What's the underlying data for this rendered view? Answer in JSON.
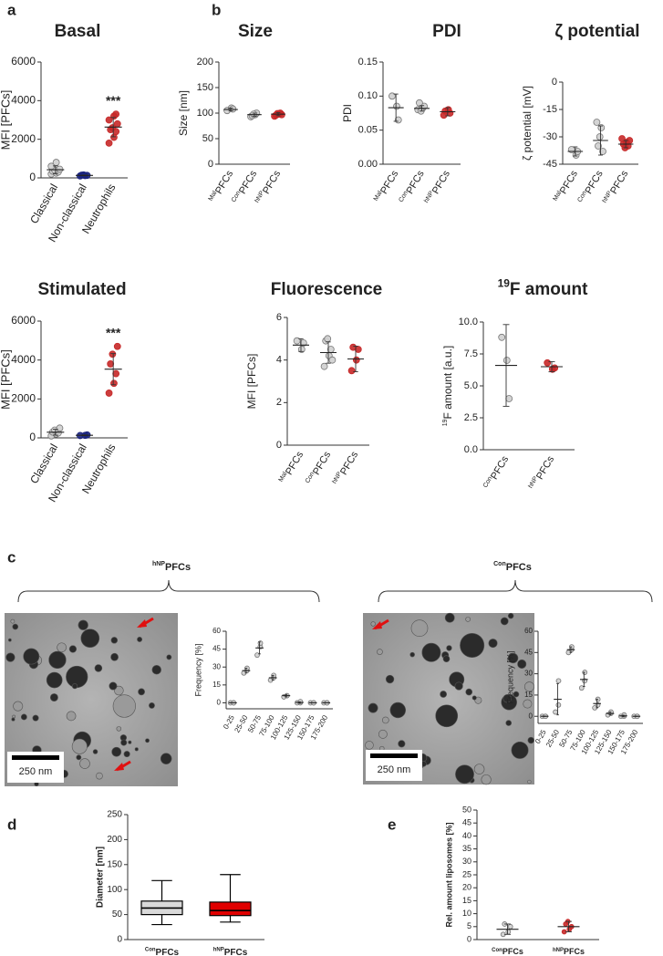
{
  "panel_letters": [
    "a",
    "b",
    "c",
    "d",
    "e"
  ],
  "chart_data": [
    {
      "type": "dot",
      "title": "Basal",
      "ylabel": "MFI [PFCs]",
      "ylim": [
        0,
        6000
      ],
      "yticks": [
        0,
        2000,
        4000,
        6000
      ],
      "categories": [
        "Classical",
        "Non-classical",
        "Neutrophils"
      ],
      "colors": [
        "#cfcfcf",
        "#1a237e",
        "#c62828"
      ],
      "points": [
        [
          200,
          250,
          300,
          350,
          400,
          450,
          600,
          800
        ],
        [
          100,
          120,
          130,
          140,
          150
        ],
        [
          1800,
          2100,
          2400,
          2500,
          2600,
          2800,
          3000,
          3200,
          3300
        ]
      ],
      "mean": [
        420,
        128,
        2630
      ],
      "sd": [
        200,
        20,
        500
      ],
      "annotation": {
        "text": "***",
        "category": "Neutrophils"
      }
    },
    {
      "type": "dot",
      "title": "Size",
      "ylabel": "Size [nm]",
      "ylim": [
        0,
        200
      ],
      "yticks": [
        0,
        50,
        100,
        150,
        200
      ],
      "categories": [
        [
          "Mal",
          "PFCs"
        ],
        [
          "Con",
          "PFCs"
        ],
        [
          "hNP",
          "PFCs"
        ]
      ],
      "colors": [
        "#cfcfcf",
        "#cfcfcf",
        "#c62828"
      ],
      "points": [
        [
          105,
          110,
          108
        ],
        [
          93,
          97,
          100,
          95,
          98
        ],
        [
          94,
          98,
          100,
          96,
          99,
          97
        ]
      ],
      "mean": [
        107,
        97,
        98
      ],
      "sd": [
        3,
        3,
        3
      ]
    },
    {
      "type": "dot",
      "title": "PDI",
      "ylabel": "PDI",
      "ylim": [
        0,
        0.15
      ],
      "yticks": [
        {
          "value": 0,
          "label": "0.00"
        },
        {
          "value": 0.05,
          "label": "0.05"
        },
        {
          "value": 0.1,
          "label": "0.10"
        },
        {
          "value": 0.15,
          "label": "0.15"
        }
      ],
      "categories": [
        [
          "Mal",
          "PFCs"
        ],
        [
          "Con",
          "PFCs"
        ],
        [
          "hNP",
          "PFCs"
        ]
      ],
      "colors": [
        "#cfcfcf",
        "#cfcfcf",
        "#c62828"
      ],
      "points": [
        [
          0.1,
          0.085,
          0.065
        ],
        [
          0.08,
          0.082,
          0.085,
          0.09,
          0.078
        ],
        [
          0.072,
          0.08,
          0.075,
          0.078
        ]
      ],
      "mean": [
        0.083,
        0.082,
        0.077
      ],
      "sd": [
        0.02,
        0.004,
        0.006
      ]
    },
    {
      "type": "dot",
      "title": "ζ potential",
      "ylabel": "ζ potential [mV]",
      "ylim": [
        -45,
        0
      ],
      "yticks": [
        0,
        -15,
        -30,
        -45
      ],
      "categories": [
        [
          "Mal",
          "PFCs"
        ],
        [
          "Con",
          "PFCs"
        ],
        [
          "hNP",
          "PFCs"
        ]
      ],
      "colors": [
        "#cfcfcf",
        "#cfcfcf",
        "#c62828"
      ],
      "points": [
        [
          -37,
          -40,
          -38
        ],
        [
          -22,
          -25,
          -38,
          -35,
          -30
        ],
        [
          -31,
          -33,
          -35,
          -34,
          -36,
          -32
        ]
      ],
      "mean": [
        -38,
        -32,
        -34
      ],
      "sd": [
        2.5,
        8,
        2
      ]
    },
    {
      "type": "dot",
      "title": "Stimulated",
      "ylabel": "MFI [PFCs]",
      "ylim": [
        0,
        6000
      ],
      "yticks": [
        0,
        2000,
        4000,
        6000
      ],
      "categories": [
        "Classical",
        "Non-classical",
        "Neutrophils"
      ],
      "colors": [
        "#cfcfcf",
        "#1a237e",
        "#c62828"
      ],
      "points": [
        [
          100,
          200,
          250,
          300,
          400,
          500
        ],
        [
          120,
          130,
          150
        ],
        [
          2300,
          2800,
          3300,
          3800,
          4300,
          4700
        ]
      ],
      "mean": [
        290,
        133,
        3530
      ],
      "sd": [
        150,
        20,
        800
      ],
      "annotation": {
        "text": "***",
        "category": "Neutrophils"
      }
    },
    {
      "type": "dot",
      "title": "Fluorescence",
      "ylabel": "MFI [PFCs]",
      "ylim": [
        0,
        6
      ],
      "yticks": [
        0,
        2,
        4,
        6
      ],
      "categories": [
        [
          "Mal",
          "PFCs"
        ],
        [
          "Con",
          "PFCs"
        ],
        [
          "hNP",
          "PFCs"
        ]
      ],
      "colors": [
        "#cfcfcf",
        "#cfcfcf",
        "#c62828"
      ],
      "points": [
        [
          4.9,
          4.5,
          4.8
        ],
        [
          3.7,
          4.2,
          4.5,
          4.9,
          5.0,
          4.0
        ],
        [
          3.5,
          4.0,
          4.5,
          4.6
        ]
      ],
      "mean": [
        4.7,
        4.35,
        4.05
      ],
      "sd": [
        0.3,
        0.5,
        0.6
      ]
    },
    {
      "type": "dot",
      "title": [
        "19",
        "F amount"
      ],
      "ylabel": [
        "19",
        "F amount [a.u.]"
      ],
      "ylim": [
        0,
        10
      ],
      "yticks": [
        {
          "value": 0,
          "label": "0.0"
        },
        {
          "value": 2.5,
          "label": "2.5"
        },
        {
          "value": 5,
          "label": "5.0"
        },
        {
          "value": 7.5,
          "label": "7.5"
        },
        {
          "value": 10,
          "label": "10.0"
        }
      ],
      "categories": [
        [
          "Con",
          "PFCs"
        ],
        [
          "hNP",
          "PFCs"
        ]
      ],
      "colors": [
        "#cfcfcf",
        "#c62828"
      ],
      "points": [
        [
          8.8,
          7.0,
          4.0
        ],
        [
          6.8,
          6.3,
          6.4
        ]
      ],
      "mean": [
        6.6,
        6.5
      ],
      "sd": [
        3.2,
        0.4
      ]
    },
    {
      "type": "dot",
      "title": [
        "hNP",
        "PFCs"
      ],
      "scale_bar": "250 nm",
      "ylabel": "Frequency [%]",
      "ylim": [
        -5,
        60
      ],
      "yticks": [
        0,
        15,
        30,
        45,
        60
      ],
      "categories": [
        "0-25",
        "25-50",
        "50-75",
        "75-100",
        "100-125",
        "125-150",
        "150-175",
        "175-200"
      ],
      "colors": [
        "#cfcfcf",
        "#cfcfcf",
        "#cfcfcf",
        "#cfcfcf",
        "#cfcfcf",
        "#cfcfcf",
        "#cfcfcf",
        "#cfcfcf"
      ],
      "points": [
        [
          0,
          0,
          0
        ],
        [
          25,
          27,
          29
        ],
        [
          40,
          47,
          50
        ],
        [
          19,
          21,
          23
        ],
        [
          5,
          6,
          6
        ],
        [
          0,
          0,
          1
        ],
        [
          0,
          0,
          0
        ],
        [
          0,
          0,
          0
        ]
      ],
      "mean": [
        0,
        27,
        46,
        21,
        6,
        0.3,
        0,
        0
      ],
      "sd": [
        0,
        2,
        5,
        2,
        1,
        0.5,
        0,
        0
      ]
    },
    {
      "type": "dot",
      "title": [
        "Con",
        "PFCs"
      ],
      "scale_bar": "250 nm",
      "ylabel": "Frequency [%]",
      "ylim": [
        -5,
        60
      ],
      "yticks": [
        0,
        15,
        30,
        45,
        60
      ],
      "categories": [
        "0-25",
        "25-50",
        "50-75",
        "75-100",
        "100-125",
        "125-150",
        "150-175",
        "175-200"
      ],
      "colors": [
        "#cfcfcf",
        "#cfcfcf",
        "#cfcfcf",
        "#cfcfcf",
        "#cfcfcf",
        "#cfcfcf",
        "#cfcfcf",
        "#cfcfcf"
      ],
      "points": [
        [
          0,
          0,
          0
        ],
        [
          3,
          8,
          25
        ],
        [
          45,
          47,
          49
        ],
        [
          20,
          25,
          31
        ],
        [
          6,
          8,
          12
        ],
        [
          1,
          2,
          3
        ],
        [
          0,
          0,
          1
        ],
        [
          0,
          0,
          0
        ]
      ],
      "mean": [
        0,
        12,
        47,
        26,
        9,
        2,
        0.3,
        0
      ],
      "sd": [
        0,
        11,
        2,
        5,
        3,
        1,
        0.5,
        0
      ]
    },
    {
      "type": "box",
      "ylabel": "Diameter [nm]",
      "ylim": [
        0,
        250
      ],
      "yticks": [
        0,
        50,
        100,
        150,
        200,
        250
      ],
      "categories": [
        [
          "Con",
          "PFCs"
        ],
        [
          "hNP",
          "PFCs"
        ]
      ],
      "colors": [
        "#d9d9d9",
        "#e00000"
      ],
      "boxes": [
        {
          "min": 30,
          "q1": 50,
          "median": 63,
          "q3": 77,
          "max": 118
        },
        {
          "min": 35,
          "q1": 48,
          "median": 58,
          "q3": 75,
          "max": 130
        }
      ]
    },
    {
      "type": "dot",
      "ylabel": "Rel. amount liposomes [%]",
      "ylim": [
        0,
        50
      ],
      "yticks": [
        0,
        5,
        10,
        15,
        20,
        25,
        30,
        35,
        40,
        45,
        50
      ],
      "categories": [
        [
          "Con",
          "PFCs"
        ],
        [
          "hNP",
          "PFCs"
        ]
      ],
      "colors": [
        "#cfcfcf",
        "#c62828"
      ],
      "points": [
        [
          2,
          3,
          5,
          6
        ],
        [
          3,
          4,
          5,
          6,
          7
        ]
      ],
      "mean": [
        4,
        5
      ],
      "sd": [
        2,
        2
      ]
    }
  ]
}
